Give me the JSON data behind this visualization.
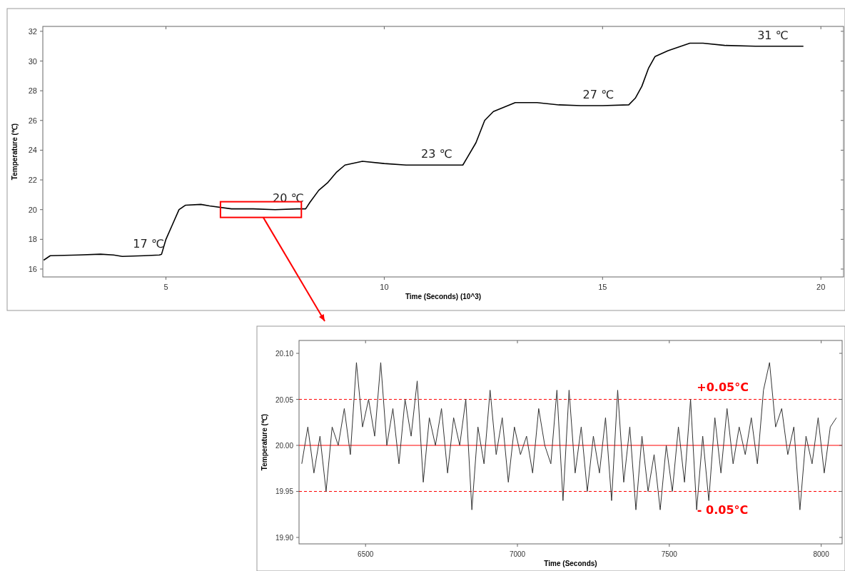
{
  "chart_data": [
    {
      "type": "line",
      "xlabel": "Time (Seconds) (10^3)",
      "ylabel": "Temperature (℃)",
      "xlim": [
        2.18,
        20.52
      ],
      "xticks": [
        5,
        10,
        15,
        20
      ],
      "ylim": [
        15.47,
        32.33
      ],
      "yticks": [
        16,
        18,
        20,
        22,
        24,
        26,
        28,
        30,
        32
      ],
      "grid": false,
      "series": [
        {
          "color": "#000000",
          "x": [
            2.2,
            2.35,
            3.0,
            3.5,
            3.8,
            4.0,
            4.5,
            4.85,
            4.9,
            5.0,
            5.15,
            5.3,
            5.45,
            5.8,
            6.0,
            6.5,
            7.0,
            7.5,
            8.0,
            8.2,
            8.3,
            8.5,
            8.7,
            8.9,
            9.1,
            9.5,
            10.0,
            10.5,
            11.0,
            11.5,
            11.8,
            11.9,
            12.1,
            12.3,
            12.5,
            13.0,
            13.5,
            14.0,
            14.5,
            15.0,
            15.6,
            15.75,
            15.9,
            16.05,
            16.2,
            16.5,
            17.0,
            17.3,
            17.8,
            18.5,
            19.0,
            19.5,
            19.6
          ],
          "values": [
            16.6,
            16.9,
            16.95,
            17.0,
            16.95,
            16.85,
            16.9,
            16.95,
            17.0,
            18.0,
            19.0,
            20.0,
            20.3,
            20.35,
            20.25,
            20.05,
            20.05,
            20.0,
            20.05,
            20.05,
            20.5,
            21.3,
            21.8,
            22.5,
            23.0,
            23.25,
            23.1,
            23.0,
            23.0,
            23.0,
            23.0,
            23.5,
            24.5,
            26.0,
            26.6,
            27.2,
            27.2,
            27.05,
            27.0,
            27.0,
            27.05,
            27.5,
            28.3,
            29.5,
            30.3,
            30.7,
            31.2,
            31.2,
            31.05,
            31.0,
            31.0,
            31.0,
            31.0
          ]
        }
      ],
      "annotations": [
        {
          "text": "17 ℃",
          "x": 4.6,
          "y": 16.95
        },
        {
          "text": "20 ℃",
          "x": 7.8,
          "y": 20.05
        },
        {
          "text": "23 ℃",
          "x": 11.2,
          "y": 23.0
        },
        {
          "text": "27 ℃",
          "x": 14.9,
          "y": 27.0
        },
        {
          "text": "31 ℃",
          "x": 18.9,
          "y": 31.0
        }
      ]
    },
    {
      "type": "line",
      "xlabel": "Time (Seconds)",
      "ylabel": "Temperature (℃)",
      "xlim": [
        6281,
        8069
      ],
      "xticks": [
        6500,
        7000,
        7500,
        8000
      ],
      "ylim": [
        19.893,
        20.114
      ],
      "yticks": [
        {
          "value": 19.9,
          "label": "19.90"
        },
        {
          "value": 19.95,
          "label": "19.95"
        },
        {
          "value": 20,
          "label": "20.00"
        },
        {
          "value": 20.05,
          "label": "20.05"
        },
        {
          "value": 20.1,
          "label": "20.10"
        }
      ],
      "grid": false,
      "series": [
        {
          "color": "#333333",
          "x": [
            6290,
            6310,
            6330,
            6350,
            6370,
            6390,
            6410,
            6430,
            6450,
            6470,
            6490,
            6510,
            6530,
            6550,
            6570,
            6590,
            6610,
            6630,
            6650,
            6670,
            6690,
            6710,
            6730,
            6750,
            6770,
            6790,
            6810,
            6830,
            6850,
            6870,
            6890,
            6910,
            6930,
            6950,
            6970,
            6990,
            7010,
            7030,
            7050,
            7070,
            7090,
            7110,
            7130,
            7150,
            7170,
            7190,
            7210,
            7230,
            7250,
            7270,
            7290,
            7310,
            7330,
            7350,
            7370,
            7390,
            7410,
            7430,
            7450,
            7470,
            7490,
            7510,
            7530,
            7550,
            7570,
            7590,
            7610,
            7630,
            7650,
            7670,
            7690,
            7710,
            7730,
            7750,
            7770,
            7790,
            7810,
            7830,
            7850,
            7870,
            7890,
            7910,
            7930,
            7950,
            7970,
            7990,
            8010,
            8030,
            8050
          ],
          "values": [
            19.98,
            20.02,
            19.97,
            20.01,
            19.95,
            20.02,
            20.0,
            20.04,
            19.99,
            20.09,
            20.02,
            20.05,
            20.01,
            20.09,
            20.0,
            20.04,
            19.98,
            20.05,
            20.01,
            20.07,
            19.96,
            20.03,
            20.0,
            20.04,
            19.97,
            20.03,
            20.0,
            20.05,
            19.93,
            20.02,
            19.98,
            20.06,
            19.99,
            20.03,
            19.96,
            20.02,
            19.99,
            20.01,
            19.97,
            20.04,
            20.0,
            19.98,
            20.06,
            19.94,
            20.06,
            19.97,
            20.02,
            19.95,
            20.01,
            19.97,
            20.03,
            19.94,
            20.06,
            19.96,
            20.02,
            19.93,
            20.01,
            19.95,
            19.99,
            19.93,
            20.0,
            19.95,
            20.02,
            19.96,
            20.05,
            19.93,
            20.01,
            19.94,
            20.03,
            19.97,
            20.04,
            19.98,
            20.02,
            19.99,
            20.03,
            19.98,
            20.06,
            20.09,
            20.02,
            20.04,
            19.99,
            20.02,
            19.93,
            20.01,
            19.98,
            20.03,
            19.97,
            20.02,
            20.03
          ]
        }
      ],
      "ref_lines": [
        {
          "axis": "y",
          "value": 20.05,
          "label": "+0.05°C",
          "color": "#ff0000",
          "line_style": "dashed"
        },
        {
          "axis": "y",
          "value": 20.0,
          "label": null,
          "color": "#ff0000",
          "line_style": "solid"
        },
        {
          "axis": "y",
          "value": 19.95,
          "label": "- 0.05°C",
          "color": "#ff0000",
          "line_style": "dashed"
        }
      ]
    }
  ]
}
